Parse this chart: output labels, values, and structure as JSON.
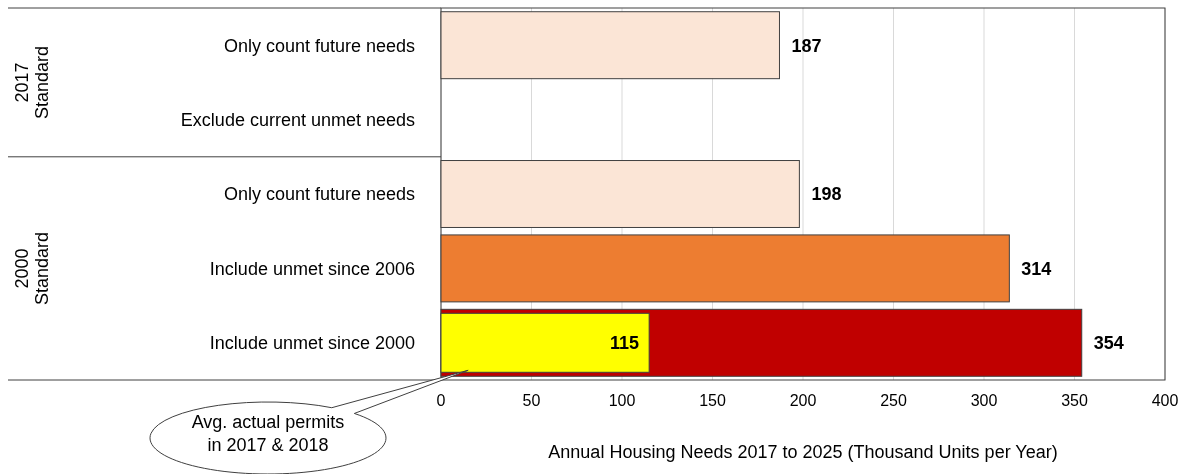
{
  "chart_data": {
    "type": "bar",
    "orientation": "horizontal",
    "categories": [
      "Only count future needs",
      "Exclude current unmet needs",
      "Only count future needs",
      "Include unmet since 2006",
      "Include unmet since 2000"
    ],
    "series": [
      {
        "colors": [
          "#fbe5d6",
          null,
          "#fbe5d6",
          "#ed7d31",
          "#c00000"
        ],
        "values": [
          187,
          null,
          198,
          314,
          354
        ]
      },
      {
        "color": "#ffff00",
        "values": [
          null,
          null,
          null,
          null,
          115
        ]
      }
    ],
    "xlim": [
      0,
      400
    ],
    "xticks": [
      0,
      50,
      100,
      150,
      200,
      250,
      300,
      350,
      400
    ],
    "xlabel": "Annual Housing Needs 2017 to 2025 (Thousand Units per Year)",
    "grid": "x",
    "data_labels": true,
    "annotations": [
      "2017 Standard",
      "2000 Standard",
      {
        "text": "Avg. actual permits in 2017 & 2018",
        "x": 15,
        "y": "Include unmet since 2000"
      }
    ]
  }
}
